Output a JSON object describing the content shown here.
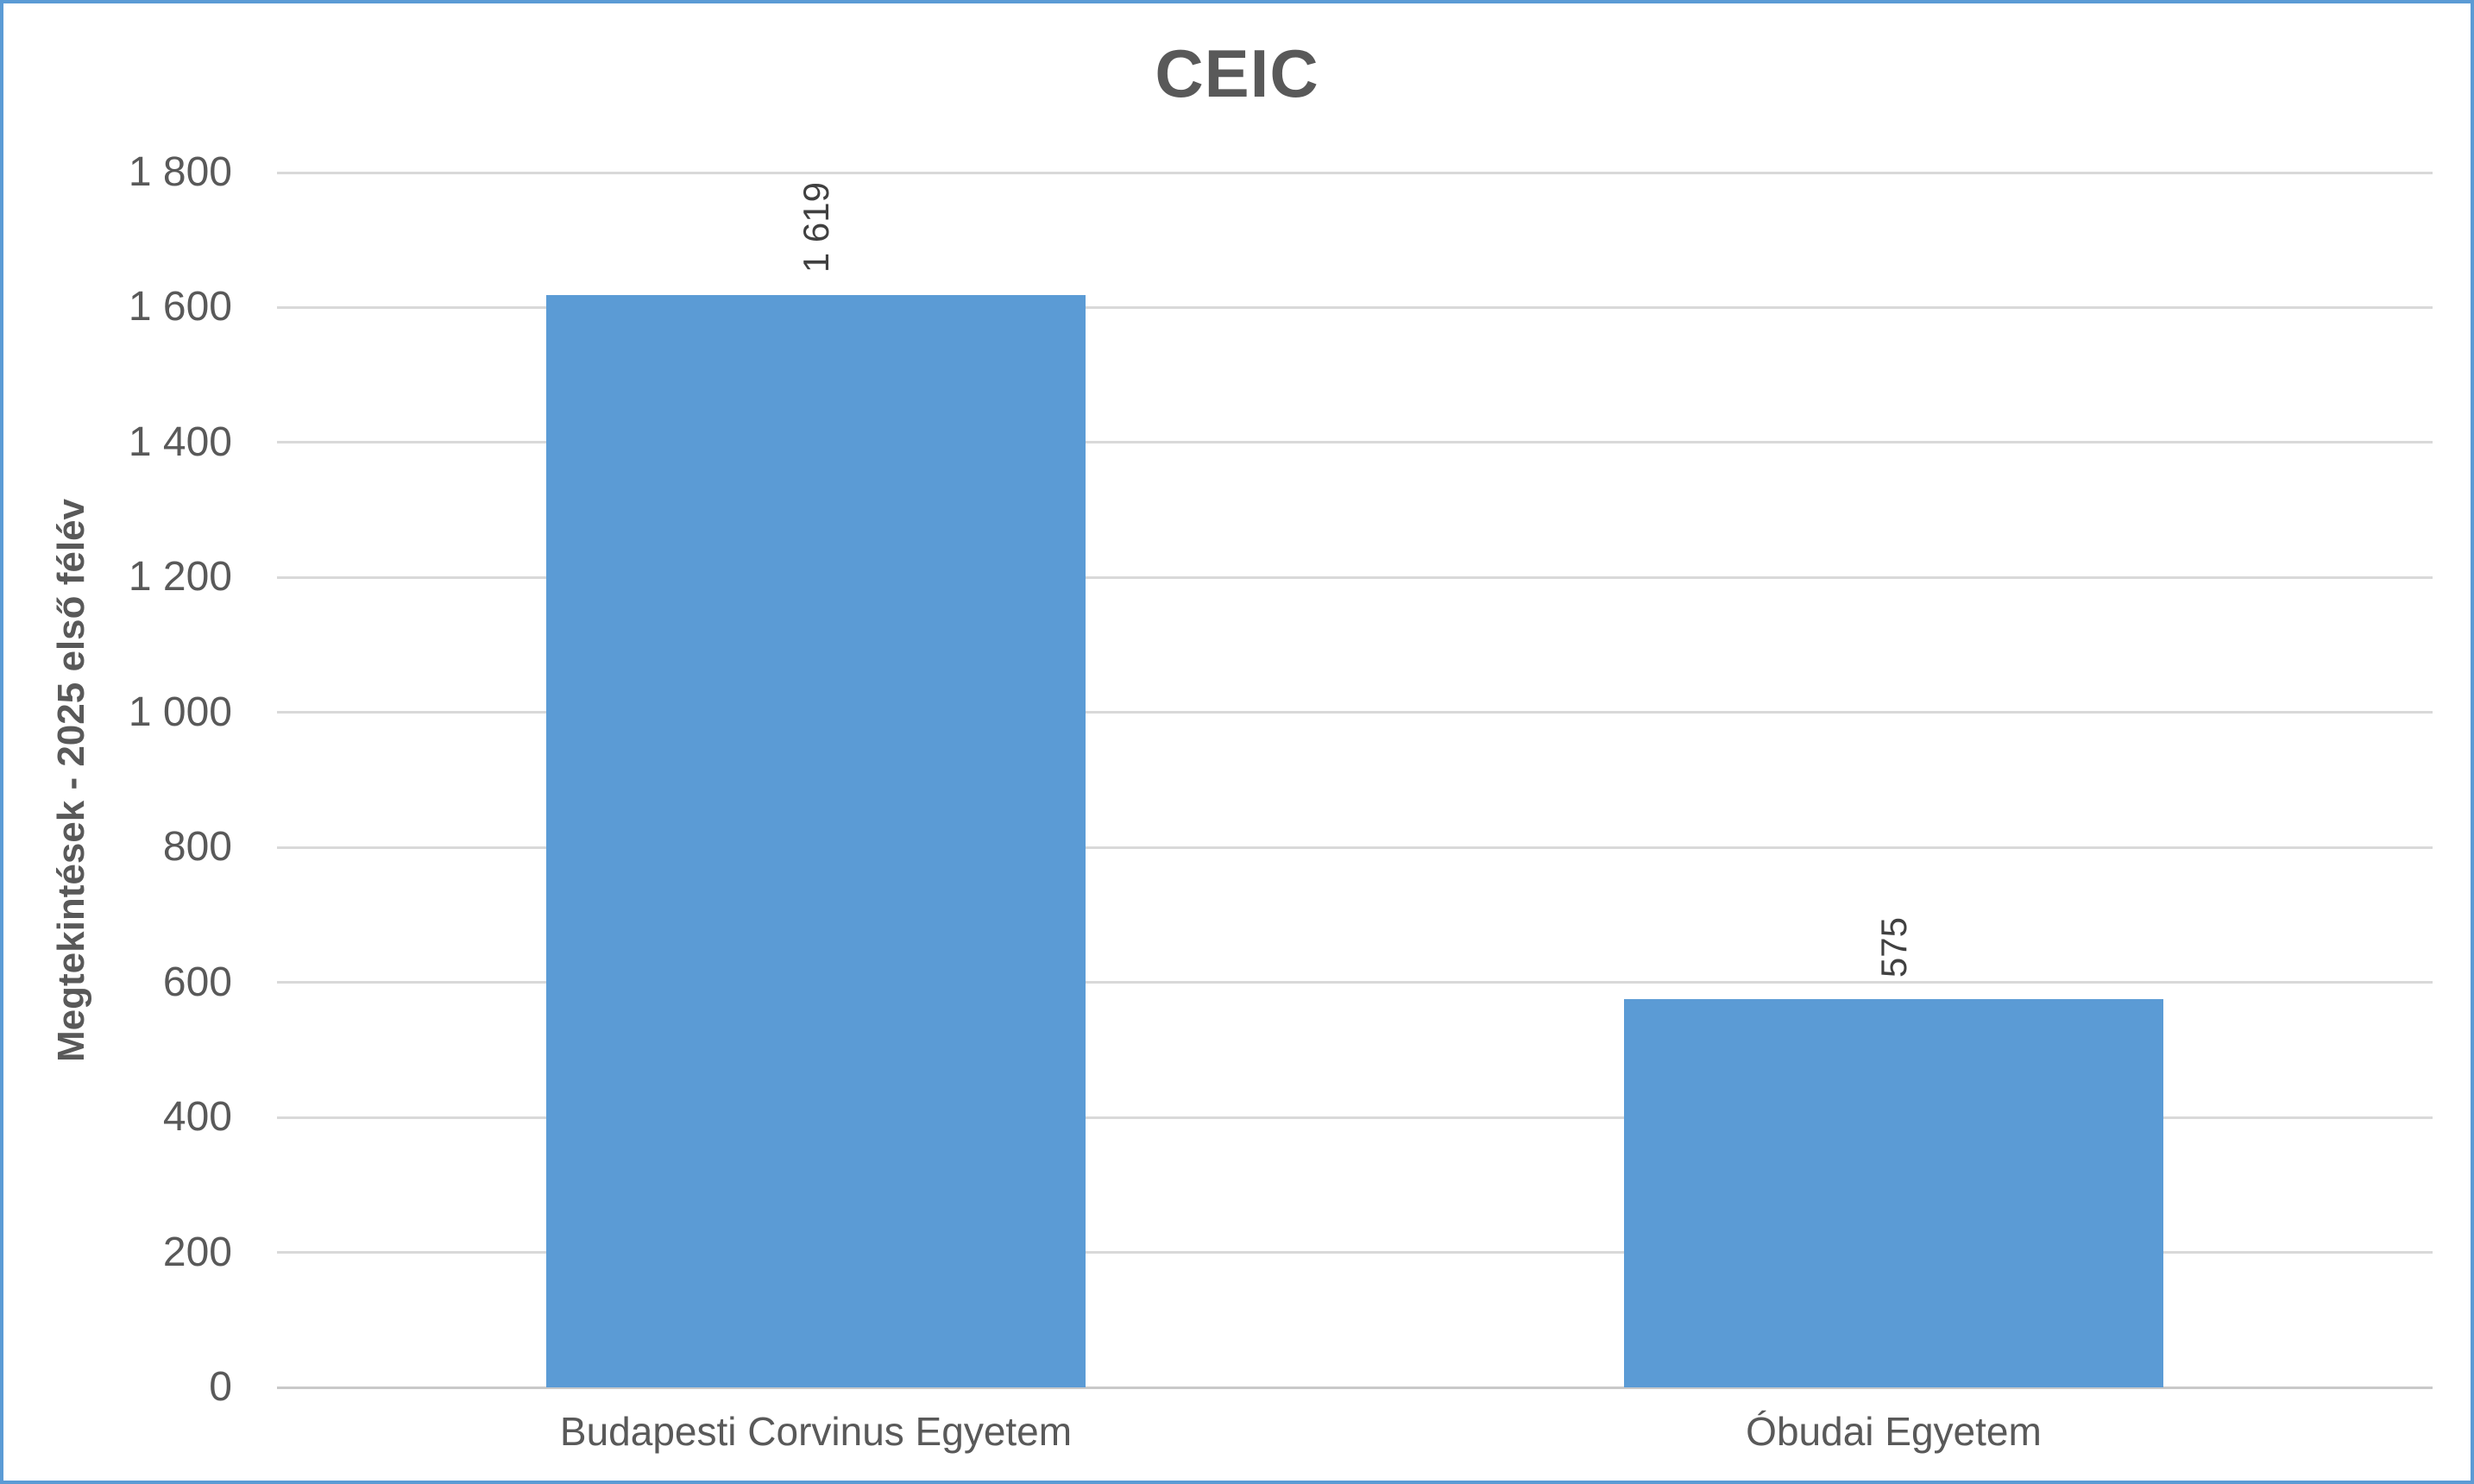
{
  "chart_data": {
    "type": "bar",
    "title": "CEIC",
    "categories": [
      "Budapesti Corvinus Egyetem",
      "Óbudai Egyetem"
    ],
    "values": [
      1619,
      575
    ],
    "data_labels": [
      "1 619",
      "575"
    ],
    "xlabel": "",
    "ylabel": "Megtekintések - 2025 első félév",
    "ylim": [
      0,
      1800
    ],
    "yticks": [
      0,
      200,
      400,
      600,
      800,
      1000,
      1200,
      1400,
      1600,
      1800
    ],
    "ytick_labels": [
      "0",
      "200",
      "400",
      "600",
      "800",
      "1 000",
      "1 200",
      "1 400",
      "1 600",
      "1 800"
    ],
    "grid": true,
    "legend": false,
    "data_label_rotation_deg": -90,
    "colors": {
      "bar": "#5B9BD5",
      "frame_border": "#5B9BD5",
      "gridline": "#D9D9D9",
      "zero_axis_line": "#C9C9C9",
      "title_text": "#595959",
      "axis_text": "#595959",
      "data_label_text": "#404040",
      "background": "#FFFFFF"
    }
  }
}
